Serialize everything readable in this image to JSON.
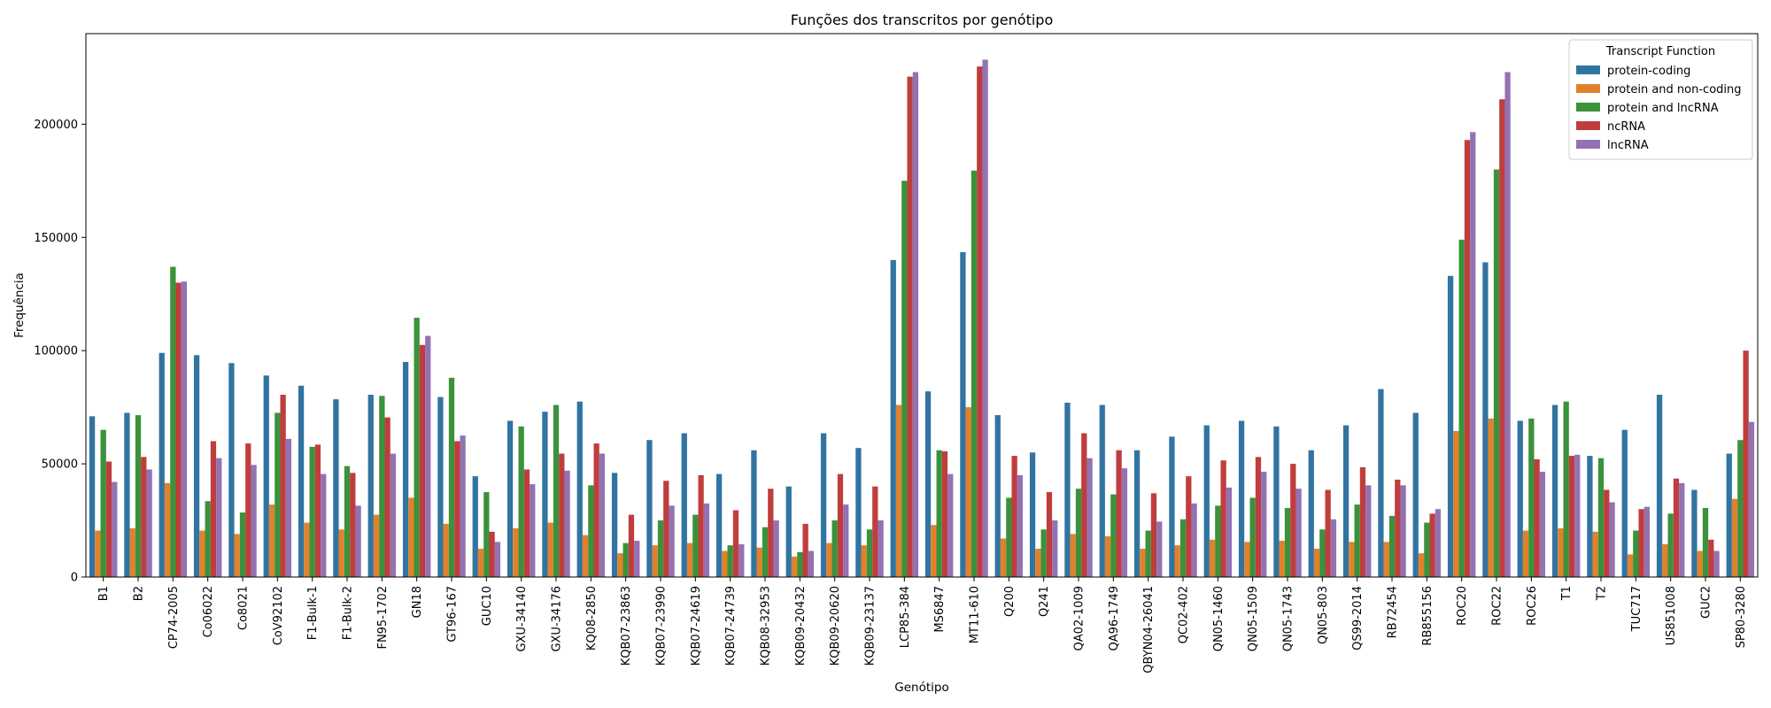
{
  "chart_data": {
    "type": "bar",
    "title": "Funções dos transcritos por genótipo",
    "xlabel": "Genótipo",
    "ylabel": "Frequência",
    "ylim": [
      0,
      240000
    ],
    "yticks": [
      0,
      50000,
      100000,
      150000,
      200000
    ],
    "grid": false,
    "legend": {
      "title": "Transcript Function",
      "placement": "top-right"
    },
    "categories": [
      "B1",
      "B2",
      "CP74-2005",
      "Co06022",
      "Co8021",
      "CoV92102",
      "F1-Bulk-1",
      "F1-Bulk-2",
      "FN95-1702",
      "GN18",
      "GT96-167",
      "GUC10",
      "GXU-34140",
      "GXU-34176",
      "KQ08-2850",
      "KQB07-23863",
      "KQB07-23990",
      "KQB07-24619",
      "KQB07-24739",
      "KQB08-32953",
      "KQB09-20432",
      "KQB09-20620",
      "KQB09-23137",
      "LCP85-384",
      "MS6847",
      "MT11-610",
      "Q200",
      "Q241",
      "QA02-1009",
      "QA96-1749",
      "QBYN04-26041",
      "QC02-402",
      "QN05-1460",
      "QN05-1509",
      "QN05-1743",
      "QN05-803",
      "QS99-2014",
      "RB72454",
      "RB855156",
      "ROC20",
      "ROC22",
      "ROC26",
      "T1",
      "T2",
      "TUC717",
      "US851008",
      "GUC2",
      "SP80-3280"
    ],
    "series": [
      {
        "name": "protein-coding",
        "color": "#3274a1",
        "values": [
          71000,
          72500,
          99000,
          98000,
          94500,
          89000,
          84500,
          78500,
          80500,
          95000,
          79500,
          44500,
          69000,
          73000,
          77500,
          46000,
          60500,
          63500,
          45500,
          56000,
          40000,
          63500,
          57000,
          140000,
          82000,
          143500,
          71500,
          55000,
          77000,
          76000,
          56000,
          62000,
          67000,
          69000,
          66500,
          56000,
          67000,
          83000,
          72500,
          133000,
          139000,
          69000,
          76000,
          53500,
          65000,
          80500,
          38500,
          54500
        ]
      },
      {
        "name": "protein and non-coding",
        "color": "#e1812c",
        "values": [
          20500,
          21500,
          41500,
          20500,
          19000,
          32000,
          24000,
          21000,
          27500,
          35000,
          23500,
          12500,
          21500,
          24000,
          18500,
          10500,
          14000,
          15000,
          11500,
          13000,
          9000,
          15000,
          14000,
          76000,
          23000,
          75000,
          17000,
          12500,
          19000,
          18000,
          12500,
          14000,
          16500,
          15500,
          16000,
          12500,
          15500,
          15500,
          10500,
          64500,
          70000,
          20500,
          21500,
          20000,
          10000,
          14500,
          11500,
          34500
        ]
      },
      {
        "name": "protein and lncRNA",
        "color": "#3a923a",
        "values": [
          65000,
          71500,
          137000,
          33500,
          28500,
          72500,
          57500,
          49000,
          80000,
          114500,
          88000,
          37500,
          66500,
          76000,
          40500,
          15000,
          25000,
          27500,
          14000,
          22000,
          11000,
          25000,
          21000,
          175000,
          56000,
          179500,
          35000,
          21000,
          39000,
          36500,
          20500,
          25500,
          31500,
          35000,
          30500,
          21000,
          32000,
          27000,
          24000,
          149000,
          180000,
          70000,
          77500,
          52500,
          20500,
          28000,
          30500,
          60500
        ]
      },
      {
        "name": "ncRNA",
        "color": "#c03d3e",
        "values": [
          51000,
          53000,
          130000,
          60000,
          59000,
          80500,
          58500,
          46000,
          70500,
          102500,
          60000,
          20000,
          47500,
          54500,
          59000,
          27500,
          42500,
          45000,
          29500,
          39000,
          23500,
          45500,
          40000,
          221000,
          55500,
          225500,
          53500,
          37500,
          63500,
          56000,
          37000,
          44500,
          51500,
          53000,
          50000,
          38500,
          48500,
          43000,
          28000,
          193000,
          211000,
          52000,
          53500,
          38500,
          30000,
          43500,
          16500,
          100000
        ]
      },
      {
        "name": "lncRNA",
        "color": "#9372b2",
        "values": [
          42000,
          47500,
          130500,
          52500,
          49500,
          61000,
          45500,
          31500,
          54500,
          106500,
          62500,
          15500,
          41000,
          47000,
          54500,
          16000,
          31500,
          32500,
          14500,
          25000,
          11500,
          32000,
          25000,
          223000,
          45500,
          228500,
          45000,
          25000,
          52500,
          48000,
          24500,
          32500,
          39500,
          46500,
          39000,
          25500,
          40500,
          40500,
          30000,
          196500,
          223000,
          46500,
          54000,
          33000,
          31000,
          41500,
          11500,
          68500
        ]
      }
    ]
  }
}
